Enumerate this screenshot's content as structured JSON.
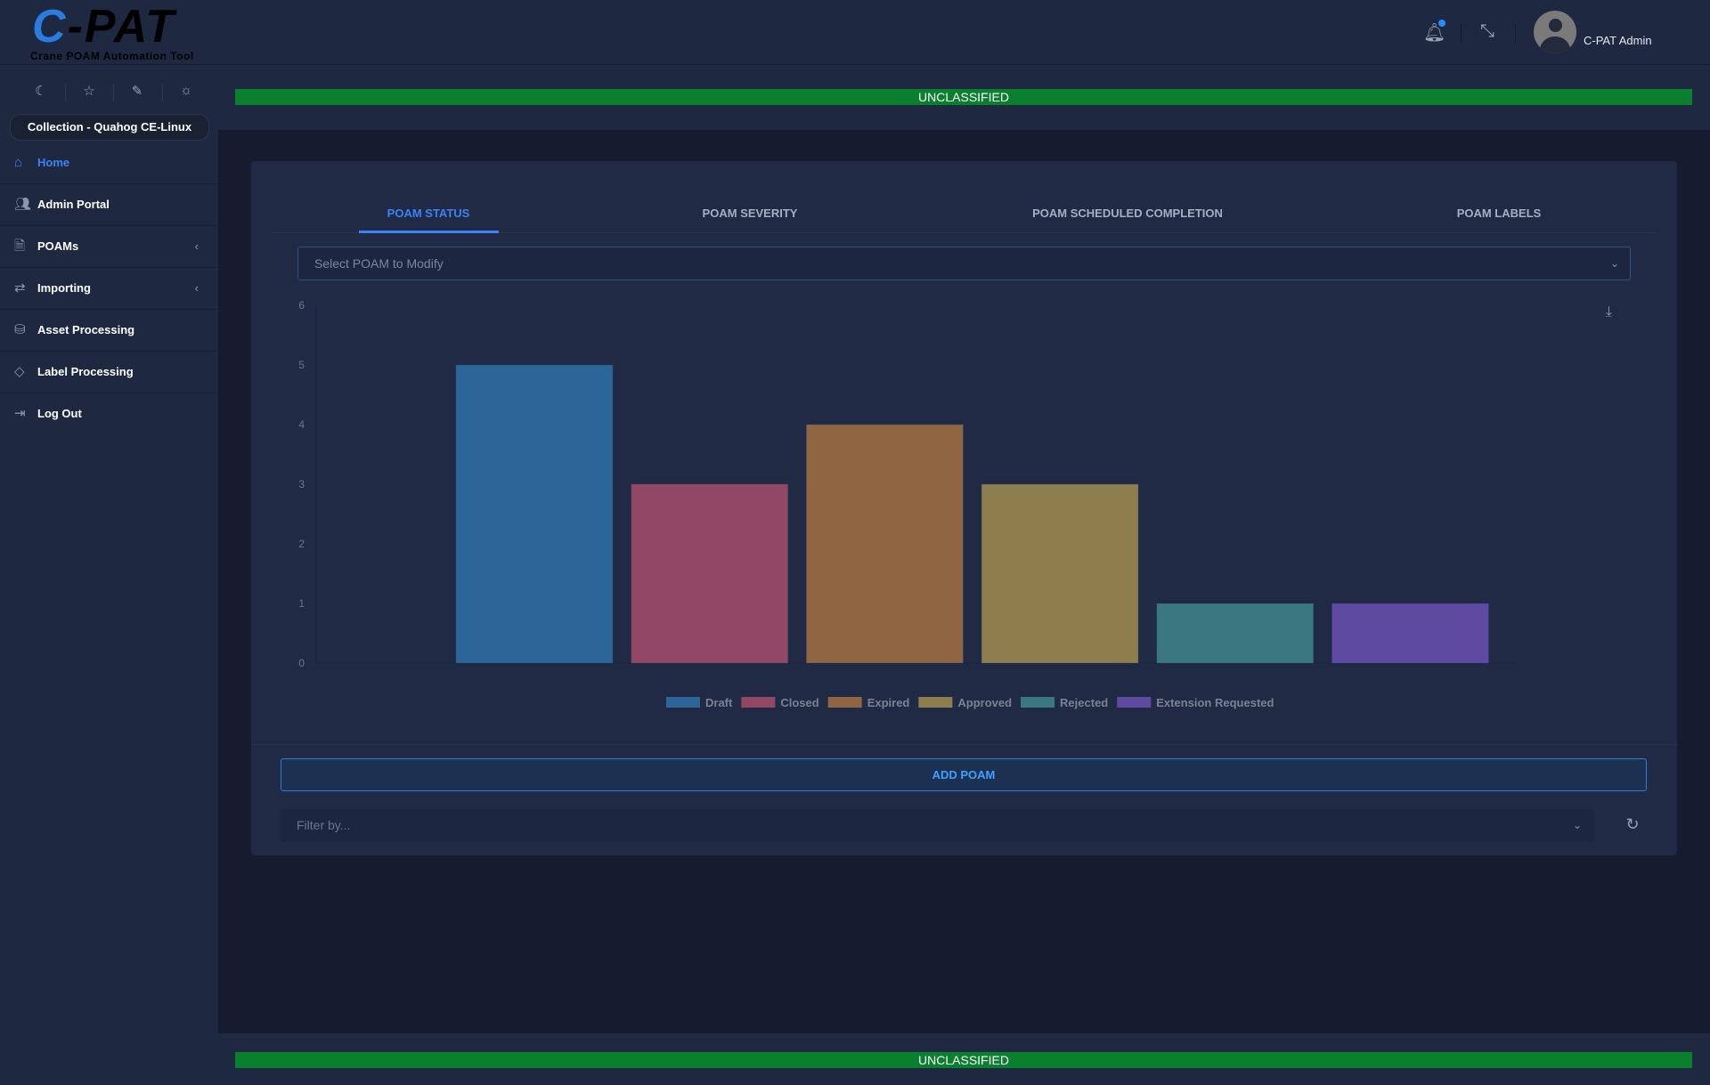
{
  "header": {
    "logo_text": "C-PAT",
    "logo_subtitle": "Crane POAM Automation Tool",
    "user_name": "C-PAT Admin",
    "notification_icon": "bell-icon",
    "collapse_icon": "compress-icon"
  },
  "banner": {
    "top": "UNCLASSIFIED",
    "bottom": "UNCLASSIFIED",
    "color": "#0a7f2e"
  },
  "sidebar": {
    "collection": "Collection - Quahog CE-Linux",
    "mode_icons": [
      "moon-icon",
      "star-icon",
      "brush-icon",
      "sun-icon"
    ],
    "items": [
      {
        "label": "Home",
        "icon": "home-icon",
        "active": true
      },
      {
        "label": "Admin Portal",
        "icon": "users-icon"
      },
      {
        "label": "POAMs",
        "icon": "file-icon",
        "expandable": true
      },
      {
        "label": "Importing",
        "icon": "arrows-icon",
        "expandable": true
      },
      {
        "label": "Asset Processing",
        "icon": "drive-icon"
      },
      {
        "label": "Label Processing",
        "icon": "tag-icon"
      },
      {
        "label": "Log Out",
        "icon": "logout-icon"
      }
    ]
  },
  "tabs": [
    {
      "label": "POAM STATUS",
      "active": true
    },
    {
      "label": "POAM SEVERITY"
    },
    {
      "label": "POAM SCHEDULED COMPLETION"
    },
    {
      "label": "POAM LABELS"
    }
  ],
  "select_poam": {
    "placeholder": "Select POAM to Modify"
  },
  "chart_data": {
    "type": "bar",
    "categories": [
      "Draft",
      "Closed",
      "Expired",
      "Approved",
      "Rejected",
      "Extension Requested"
    ],
    "values": [
      5,
      3,
      4,
      3,
      1,
      1
    ],
    "colors": [
      "#2c6698",
      "#924864",
      "#8f6641",
      "#8e7d4d",
      "#3a7780",
      "#5f4aa2"
    ],
    "yticks": [
      0,
      1,
      2,
      3,
      4,
      5,
      6
    ],
    "ylim": [
      0,
      6
    ],
    "legend": "bottom",
    "grid": false
  },
  "actions": {
    "add_poam": "ADD POAM",
    "filter_placeholder": "Filter by..."
  }
}
